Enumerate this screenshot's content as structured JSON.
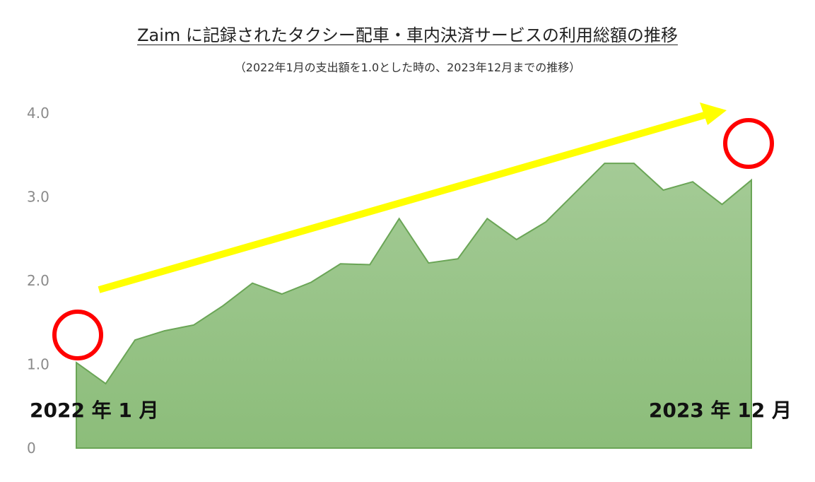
{
  "chart_data": {
    "type": "area",
    "title": "Zaim に記録されたタクシー配車・車内決済サービスの利用総額の推移",
    "subtitle": "（2022年1月の支出額を1.0とした時の、2023年12月までの推移）",
    "ylim": [
      0,
      4.0
    ],
    "y_ticks": [
      "0",
      "1.0",
      "2.0",
      "3.0",
      "4.0"
    ],
    "y_tick_values": [
      0,
      1,
      2,
      3,
      4
    ],
    "x_start_label": "2022 年 1 月",
    "x_end_label": "2023 年 12 月",
    "values": [
      1.02,
      0.77,
      1.29,
      1.4,
      1.47,
      1.7,
      1.97,
      1.84,
      1.98,
      2.2,
      2.19,
      2.74,
      2.21,
      2.26,
      2.74,
      2.49,
      2.7,
      3.05,
      3.4,
      3.4,
      3.08,
      3.18,
      2.91,
      3.2
    ],
    "grid": false,
    "colors": {
      "area_fill_top": "#a4cb96",
      "area_fill_bottom": "#8cbd7a",
      "area_stroke": "#6aa556",
      "trend_arrow": "#ffff00",
      "highlight_circle": "#ff0000"
    }
  }
}
